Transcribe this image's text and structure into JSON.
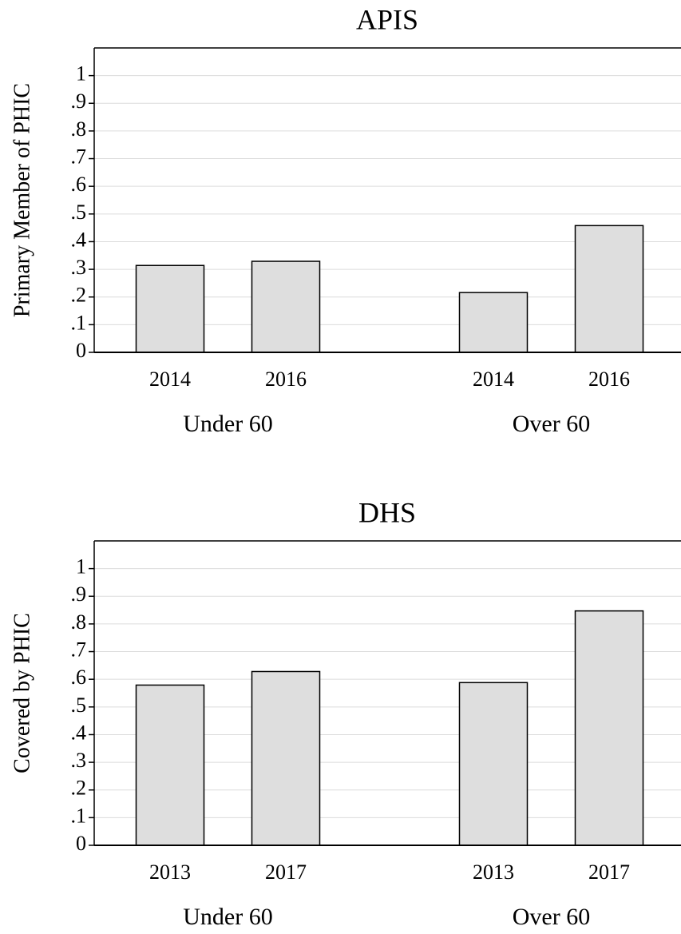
{
  "chart_data": [
    {
      "type": "bar",
      "title": "APIS",
      "y_label": "Primary Member of PHIC",
      "groups": [
        {
          "name": "Under 60",
          "categories": [
            "2014",
            "2016"
          ],
          "values": [
            0.314,
            0.329
          ]
        },
        {
          "name": "Over 60",
          "categories": [
            "2014",
            "2016"
          ],
          "values": [
            0.216,
            0.458
          ]
        }
      ],
      "color": "#dedede",
      "ylim": [
        0,
        1.1
      ],
      "yticks": [
        0,
        {
          "value": 0.1,
          "label": ".1"
        },
        {
          "value": 0.2,
          "label": ".2"
        },
        {
          "value": 0.3,
          "label": ".3"
        },
        {
          "value": 0.4,
          "label": ".4"
        },
        {
          "value": 0.5,
          "label": ".5"
        },
        {
          "value": 0.6,
          "label": ".6"
        },
        {
          "value": 0.7,
          "label": ".7"
        },
        {
          "value": 0.8,
          "label": ".8"
        },
        {
          "value": 0.9,
          "label": ".9"
        },
        1
      ],
      "grid": true
    },
    {
      "type": "bar",
      "title": "DHS",
      "y_label": "Covered by PHIC",
      "groups": [
        {
          "name": "Under 60",
          "categories": [
            "2013",
            "2017"
          ],
          "values": [
            0.579,
            0.628
          ]
        },
        {
          "name": "Over 60",
          "categories": [
            "2013",
            "2017"
          ],
          "values": [
            0.588,
            0.847
          ]
        }
      ],
      "color": "#dedede",
      "ylim": [
        0,
        1.1
      ],
      "yticks": [
        0,
        {
          "value": 0.1,
          "label": ".1"
        },
        {
          "value": 0.2,
          "label": ".2"
        },
        {
          "value": 0.3,
          "label": ".3"
        },
        {
          "value": 0.4,
          "label": ".4"
        },
        {
          "value": 0.5,
          "label": ".5"
        },
        {
          "value": 0.6,
          "label": ".6"
        },
        {
          "value": 0.7,
          "label": ".7"
        },
        {
          "value": 0.8,
          "label": ".8"
        },
        {
          "value": 0.9,
          "label": ".9"
        },
        1
      ],
      "grid": true
    }
  ]
}
